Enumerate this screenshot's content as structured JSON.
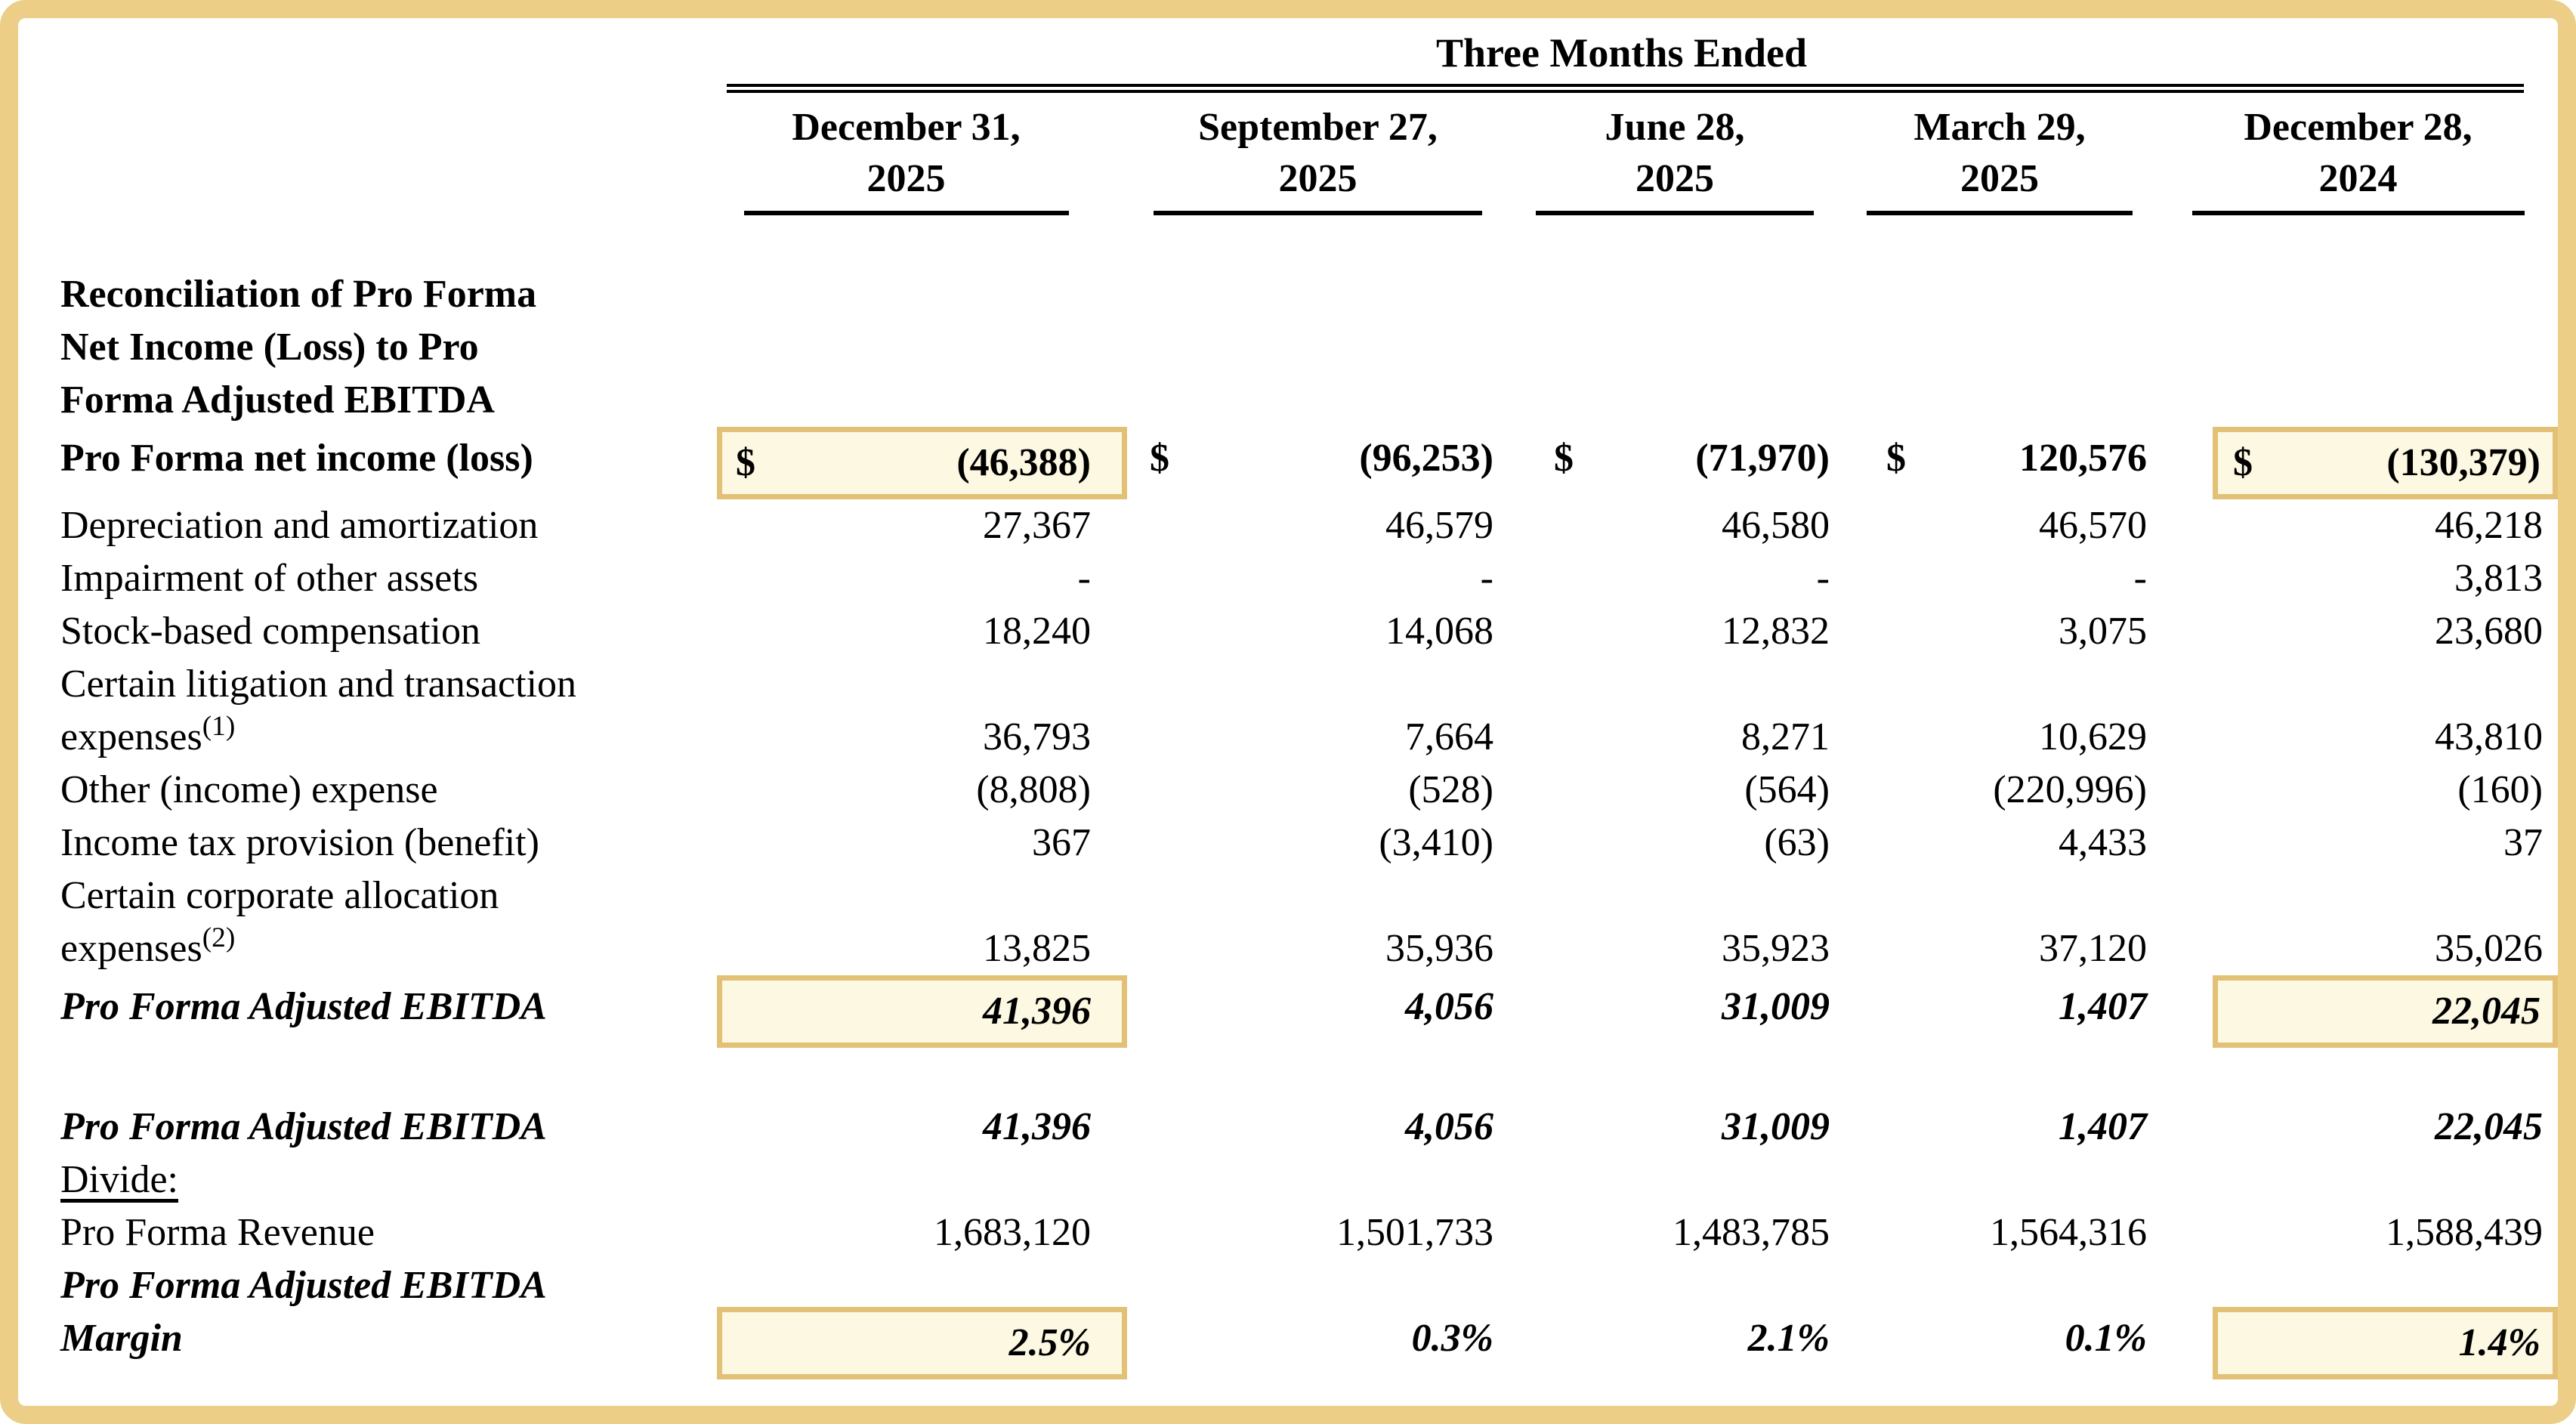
{
  "colors": {
    "frame_border": "#ECCE87",
    "highlight_fill": "#FCF8E2",
    "highlight_border": "#E2C177",
    "text": "#000000"
  },
  "table": {
    "title": "Three Months Ended",
    "dollar_symbol": "$",
    "columns": [
      {
        "line1": "December 31,",
        "line2": "2025"
      },
      {
        "line1": "September 27,",
        "line2": "2025"
      },
      {
        "line1": "June 28,",
        "line2": "2025"
      },
      {
        "line1": "March 29,",
        "line2": "2025"
      },
      {
        "line1": "December 28,",
        "line2": "2024"
      }
    ],
    "rows": [
      {
        "id": "section-header",
        "label_lines": [
          "Reconciliation of Pro Forma",
          "Net Income (Loss) to Pro",
          "Forma Adjusted EBITDA"
        ],
        "style": "bold",
        "values": []
      },
      {
        "id": "net-income",
        "label_lines": [
          "Pro Forma net income (loss)"
        ],
        "style": "bold",
        "dollar": true,
        "values": [
          "(46,388)",
          "(96,253)",
          "(71,970)",
          "120,576",
          "(130,379)"
        ],
        "highlight": [
          0,
          4
        ]
      },
      {
        "id": "depreciation",
        "label_lines": [
          "Depreciation and amortization"
        ],
        "values": [
          "27,367",
          "46,579",
          "46,580",
          "46,570",
          "46,218"
        ]
      },
      {
        "id": "impairment",
        "label_lines": [
          "Impairment of other assets"
        ],
        "values": [
          "-",
          "-",
          "-",
          "-",
          "3,813"
        ]
      },
      {
        "id": "stock-comp",
        "label_lines": [
          "Stock-based compensation"
        ],
        "values": [
          "18,240",
          "14,068",
          "12,832",
          "3,075",
          "23,680"
        ]
      },
      {
        "id": "litigation-expenses",
        "label_lines": [
          "Certain litigation and transaction",
          "expenses"
        ],
        "sup": "(1)",
        "values": [
          "36,793",
          "7,664",
          "8,271",
          "10,629",
          "43,810"
        ]
      },
      {
        "id": "other-income-expense",
        "label_lines": [
          "Other (income) expense"
        ],
        "values": [
          "(8,808)",
          "(528)",
          "(564)",
          "(220,996)",
          "(160)"
        ]
      },
      {
        "id": "income-tax",
        "label_lines": [
          "Income tax provision (benefit)"
        ],
        "values": [
          "367",
          "(3,410)",
          "(63)",
          "4,433",
          "37"
        ]
      },
      {
        "id": "corporate-allocation",
        "label_lines": [
          "Certain corporate allocation",
          "expenses"
        ],
        "sup": "(2)",
        "values": [
          "13,825",
          "35,936",
          "35,923",
          "37,120",
          "35,026"
        ]
      },
      {
        "id": "adjusted-ebitda",
        "label_lines": [
          "Pro Forma Adjusted EBITDA"
        ],
        "style": "bolditalic",
        "values": [
          "41,396",
          "4,056",
          "31,009",
          "1,407",
          "22,045"
        ],
        "highlight": [
          0,
          4
        ]
      },
      {
        "id": "spacer",
        "spacer": true
      },
      {
        "id": "adjusted-ebitda-2",
        "label_lines": [
          "Pro Forma Adjusted EBITDA"
        ],
        "style": "bolditalic",
        "values": [
          "41,396",
          "4,056",
          "31,009",
          "1,407",
          "22,045"
        ]
      },
      {
        "id": "divide",
        "label_lines": [
          "Divide:"
        ],
        "label_underline": true,
        "values": []
      },
      {
        "id": "revenue",
        "label_lines": [
          "Pro Forma Revenue"
        ],
        "values": [
          "1,683,120",
          "1,501,733",
          "1,483,785",
          "1,564,316",
          "1,588,439"
        ]
      },
      {
        "id": "ebitda-margin",
        "label_lines": [
          "Pro Forma Adjusted EBITDA",
          "Margin"
        ],
        "style": "bolditalic",
        "values": [
          "2.5%",
          "0.3%",
          "2.1%",
          "0.1%",
          "1.4%"
        ],
        "highlight": [
          0,
          4
        ]
      }
    ]
  }
}
